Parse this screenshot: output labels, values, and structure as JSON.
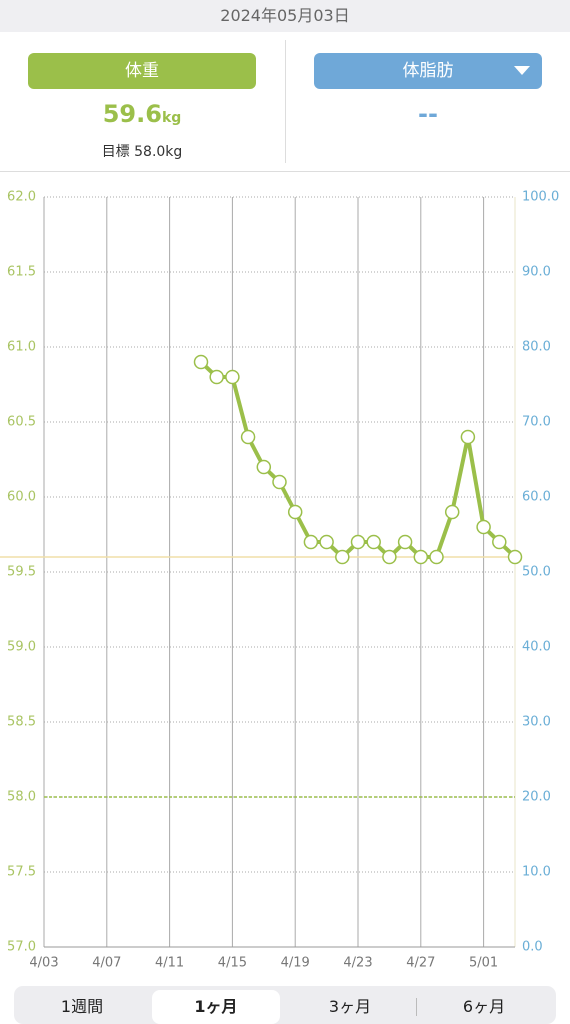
{
  "header": {
    "date": "2024年05月03日"
  },
  "weight_panel": {
    "button": "体重",
    "value": "59.6",
    "unit": "kg",
    "goal": "目標 58.0kg"
  },
  "fat_panel": {
    "button": "体脂肪",
    "value": "--"
  },
  "tabs": [
    "1週間",
    "1ヶ月",
    "3ヶ月",
    "6ヶ月"
  ],
  "selected_tab": 1,
  "chart_data": {
    "type": "line",
    "color": "#9bbf4a",
    "x": [
      "4/13",
      "4/14",
      "4/15",
      "4/16",
      "4/17",
      "4/18",
      "4/19",
      "4/20",
      "4/21",
      "4/22",
      "4/23",
      "4/24",
      "4/25",
      "4/26",
      "4/27",
      "4/28",
      "4/29",
      "4/30",
      "5/01",
      "5/02",
      "5/03"
    ],
    "values": [
      60.9,
      60.8,
      60.8,
      60.4,
      60.2,
      60.1,
      59.9,
      59.7,
      59.7,
      59.6,
      59.7,
      59.7,
      59.6,
      59.7,
      59.6,
      59.6,
      59.9,
      60.4,
      59.8,
      59.7,
      59.6
    ],
    "xlim": [
      "4/03",
      "5/03"
    ],
    "xticks": [
      "4/03",
      "4/07",
      "4/11",
      "4/15",
      "4/19",
      "4/23",
      "4/27",
      "5/01"
    ],
    "ylim": [
      57,
      62
    ],
    "yticks": [
      {
        "value": 57,
        "label": "57.0"
      },
      {
        "value": 57.5,
        "label": "57.5"
      },
      {
        "value": 58,
        "label": "58.0"
      },
      {
        "value": 58.5,
        "label": "58.5"
      },
      {
        "value": 59,
        "label": "59.0"
      },
      {
        "value": 59.5,
        "label": "59.5"
      },
      {
        "value": 60,
        "label": "60.0"
      },
      {
        "value": 60.5,
        "label": "60.5"
      },
      {
        "value": 61,
        "label": "61.0"
      },
      {
        "value": 61.5,
        "label": "61.5"
      },
      {
        "value": 62,
        "label": "62.0"
      }
    ],
    "y2lim": [
      0,
      100
    ],
    "y2ticks": [
      {
        "value": 0,
        "label": "0.0"
      },
      {
        "value": 10,
        "label": "10.0"
      },
      {
        "value": 20,
        "label": "20.0"
      },
      {
        "value": 30,
        "label": "30.0"
      },
      {
        "value": 40,
        "label": "40.0"
      },
      {
        "value": 50,
        "label": "50.0"
      },
      {
        "value": 60,
        "label": "60.0"
      },
      {
        "value": 70,
        "label": "70.0"
      },
      {
        "value": 80,
        "label": "80.0"
      },
      {
        "value": 90,
        "label": "90.0"
      },
      {
        "value": 100,
        "label": "100.0"
      }
    ],
    "target_line": 58,
    "current_line": 59.6,
    "grid": true
  }
}
